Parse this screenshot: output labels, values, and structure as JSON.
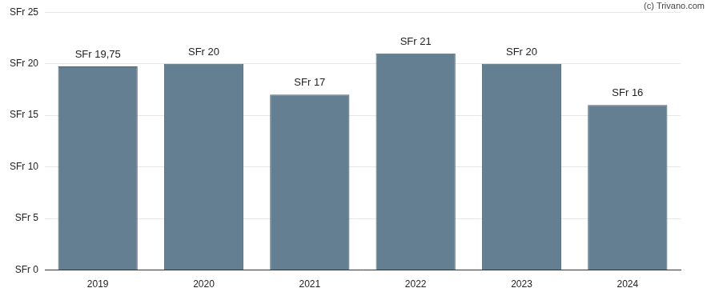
{
  "chart_data": {
    "type": "bar",
    "annotations": [
      "(c) Trivano.com"
    ],
    "categories": [
      "2019",
      "2020",
      "2021",
      "2022",
      "2023",
      "2024"
    ],
    "values": [
      19.75,
      20,
      17,
      21,
      20,
      16
    ],
    "value_labels": [
      "SFr 19,75",
      "SFr 20",
      "SFr 17",
      "SFr 21",
      "SFr 20",
      "SFr 16"
    ],
    "data_labels": true,
    "color": "#647f91",
    "ylim": [
      0,
      25
    ],
    "yticks": [
      {
        "value": 0,
        "label": "SFr 0"
      },
      {
        "value": 5,
        "label": "SFr 5"
      },
      {
        "value": 10,
        "label": "SFr 10"
      },
      {
        "value": 15,
        "label": "SFr 15"
      },
      {
        "value": 20,
        "label": "SFr 20"
      },
      {
        "value": 25,
        "label": "SFr 25"
      }
    ],
    "grid": true
  }
}
